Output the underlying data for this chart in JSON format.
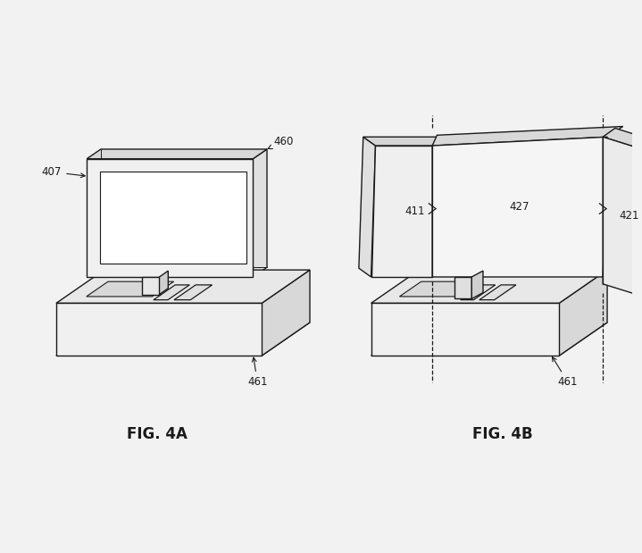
{
  "bg_color": "#f2f2f2",
  "line_color": "#1a1a1a",
  "fig4a_label": "FIG. 4A",
  "fig4b_label": "FIG. 4B",
  "label_fontsize": 8.5,
  "fig_label_fontsize": 12
}
